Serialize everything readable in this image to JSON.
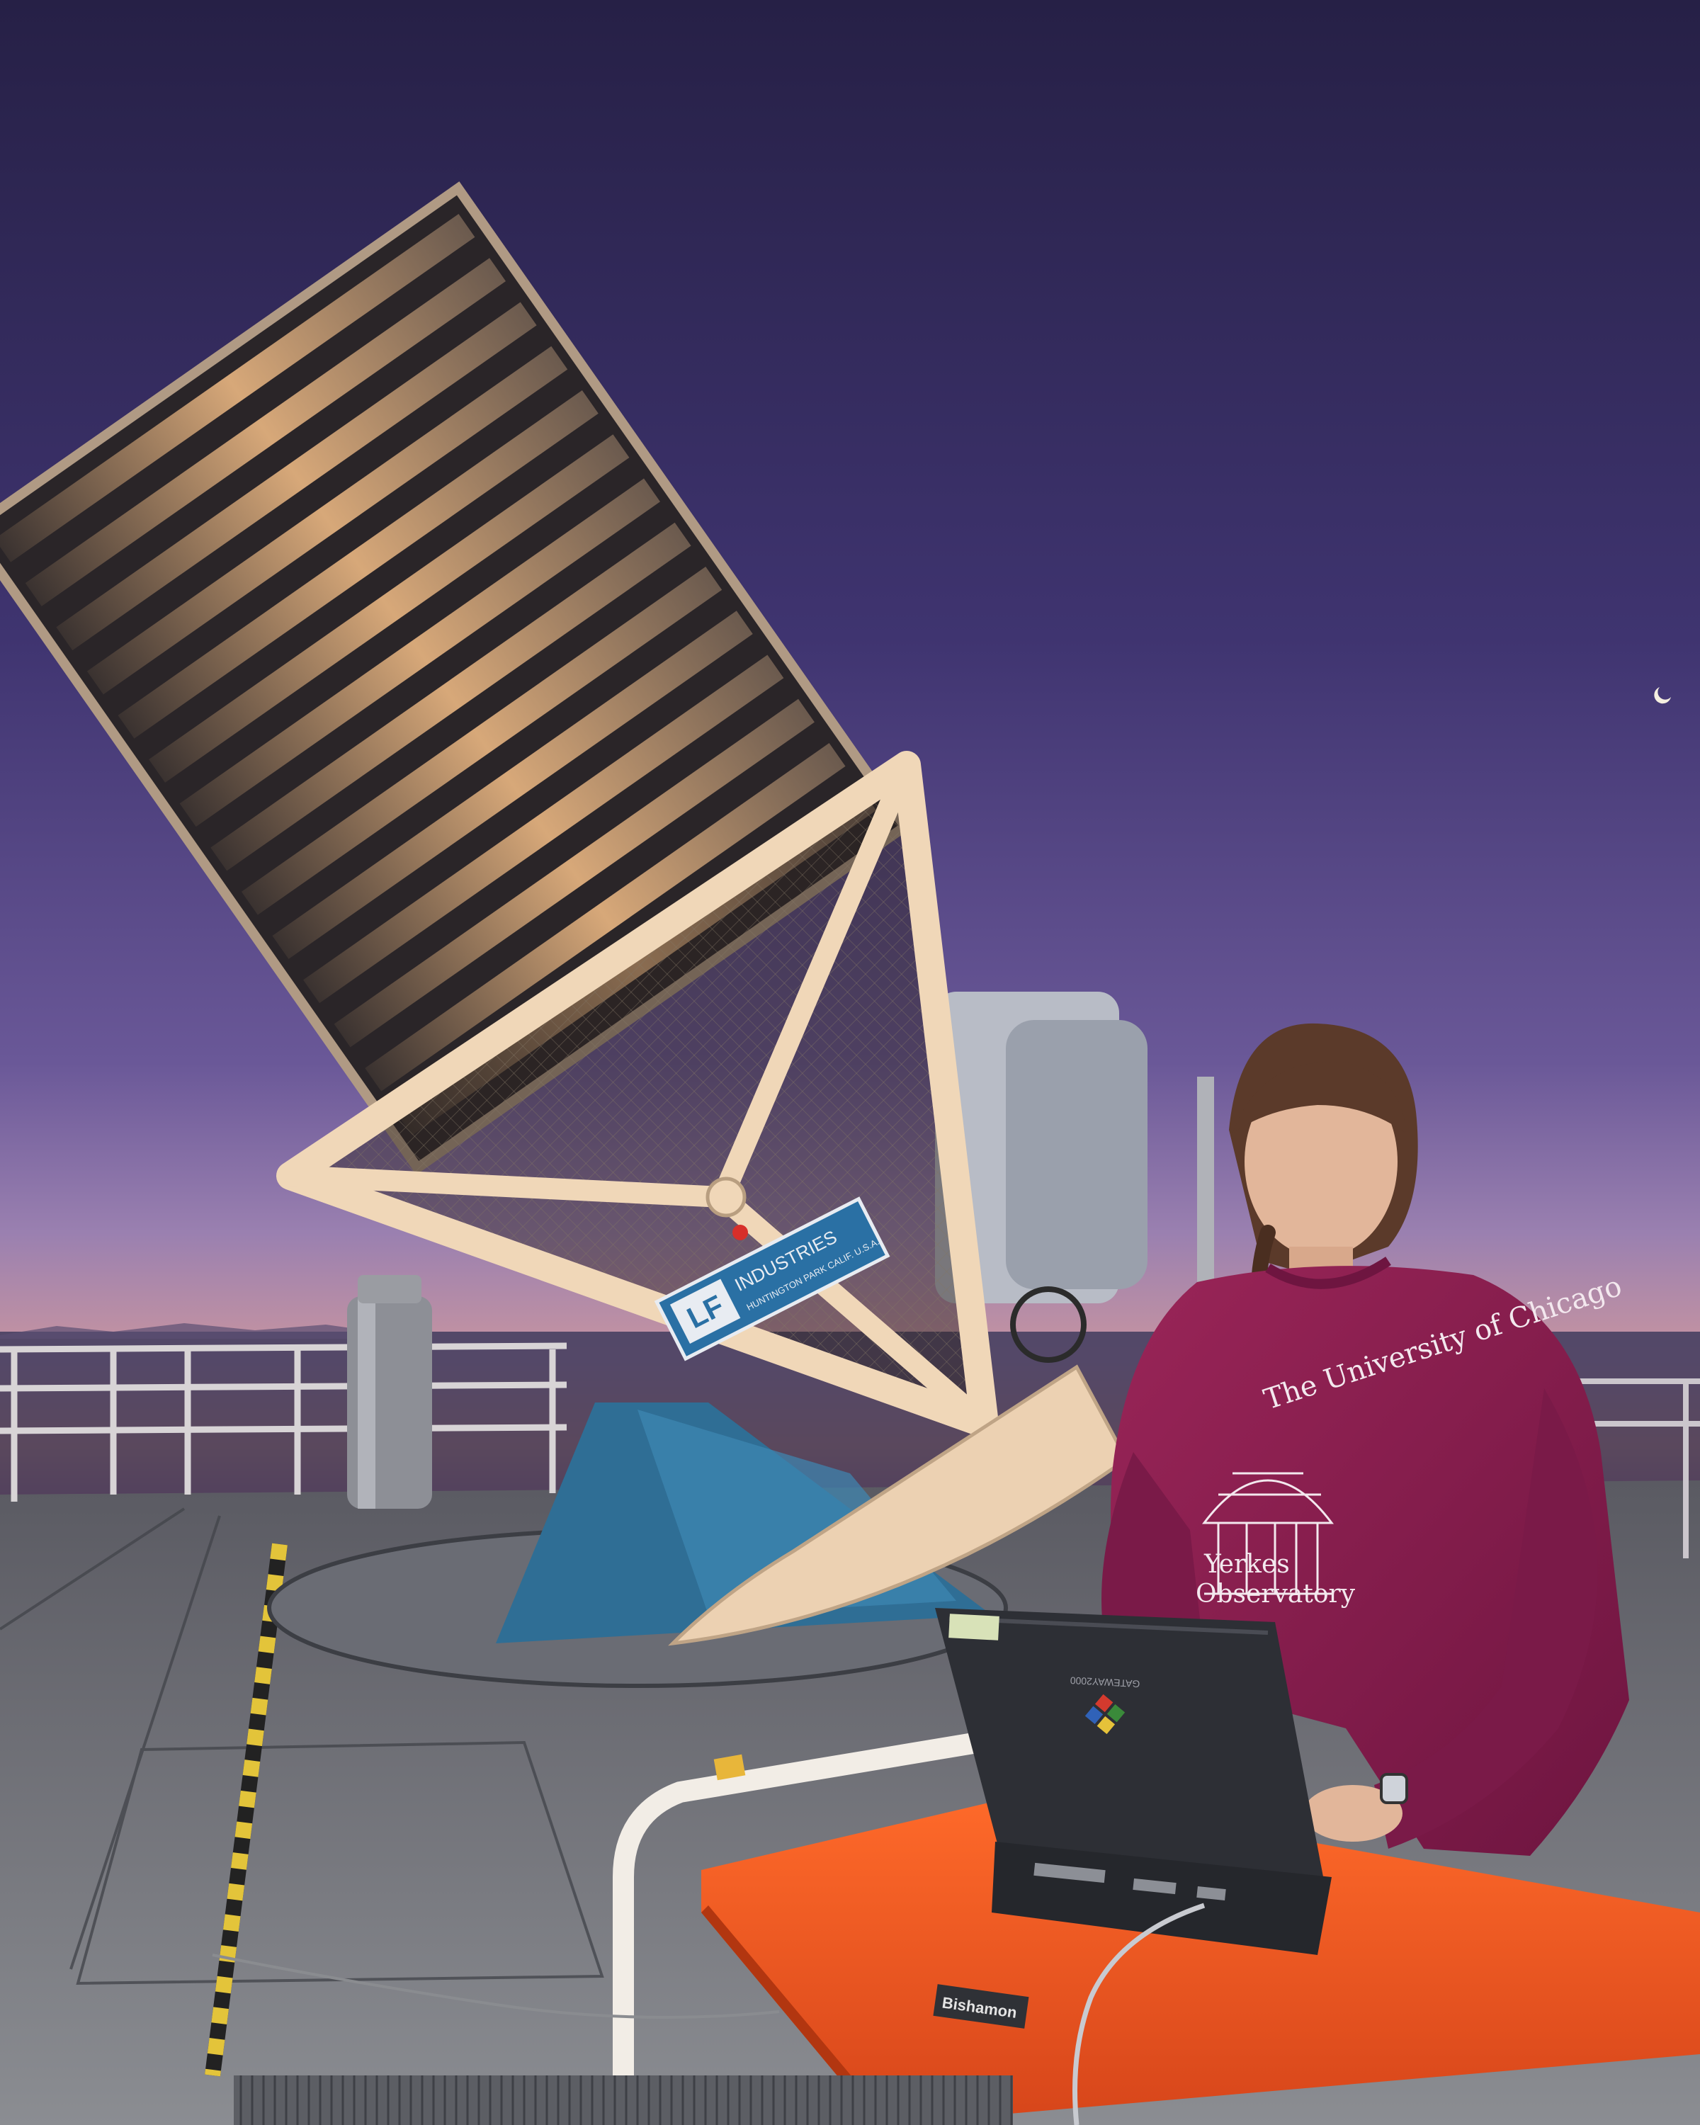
{
  "photo": {
    "subject": "Telescope with louvered wind baffle on an observatory deck at twilight; a person works on a laptop at an orange cart in the foreground",
    "colors": {
      "sky_top": "#2b2450",
      "sky_mid": "#5e4c8c",
      "sky_low": "#b08aa8",
      "horizon_glow": "#f29a55",
      "telescope_frame": "#f0d7b8",
      "telescope_mount": "#2f6e95",
      "sweatshirt": "#8a1d4f",
      "cart_top": "#f2551f",
      "laptop": "#2b2d33",
      "deck": "#6d6f74"
    }
  },
  "labels": {
    "telescope_logo": "LF",
    "telescope_brand": "INDUSTRIES",
    "telescope_brand_sub": "HUNTINGTON PARK CALIF. U.S.A.",
    "shirt_line1": "The University of Chicago",
    "shirt_line2": "Yerkes",
    "shirt_line3": "Observatory",
    "laptop_model": "GATEWAY2000",
    "cart_brand": "Bishamon"
  }
}
